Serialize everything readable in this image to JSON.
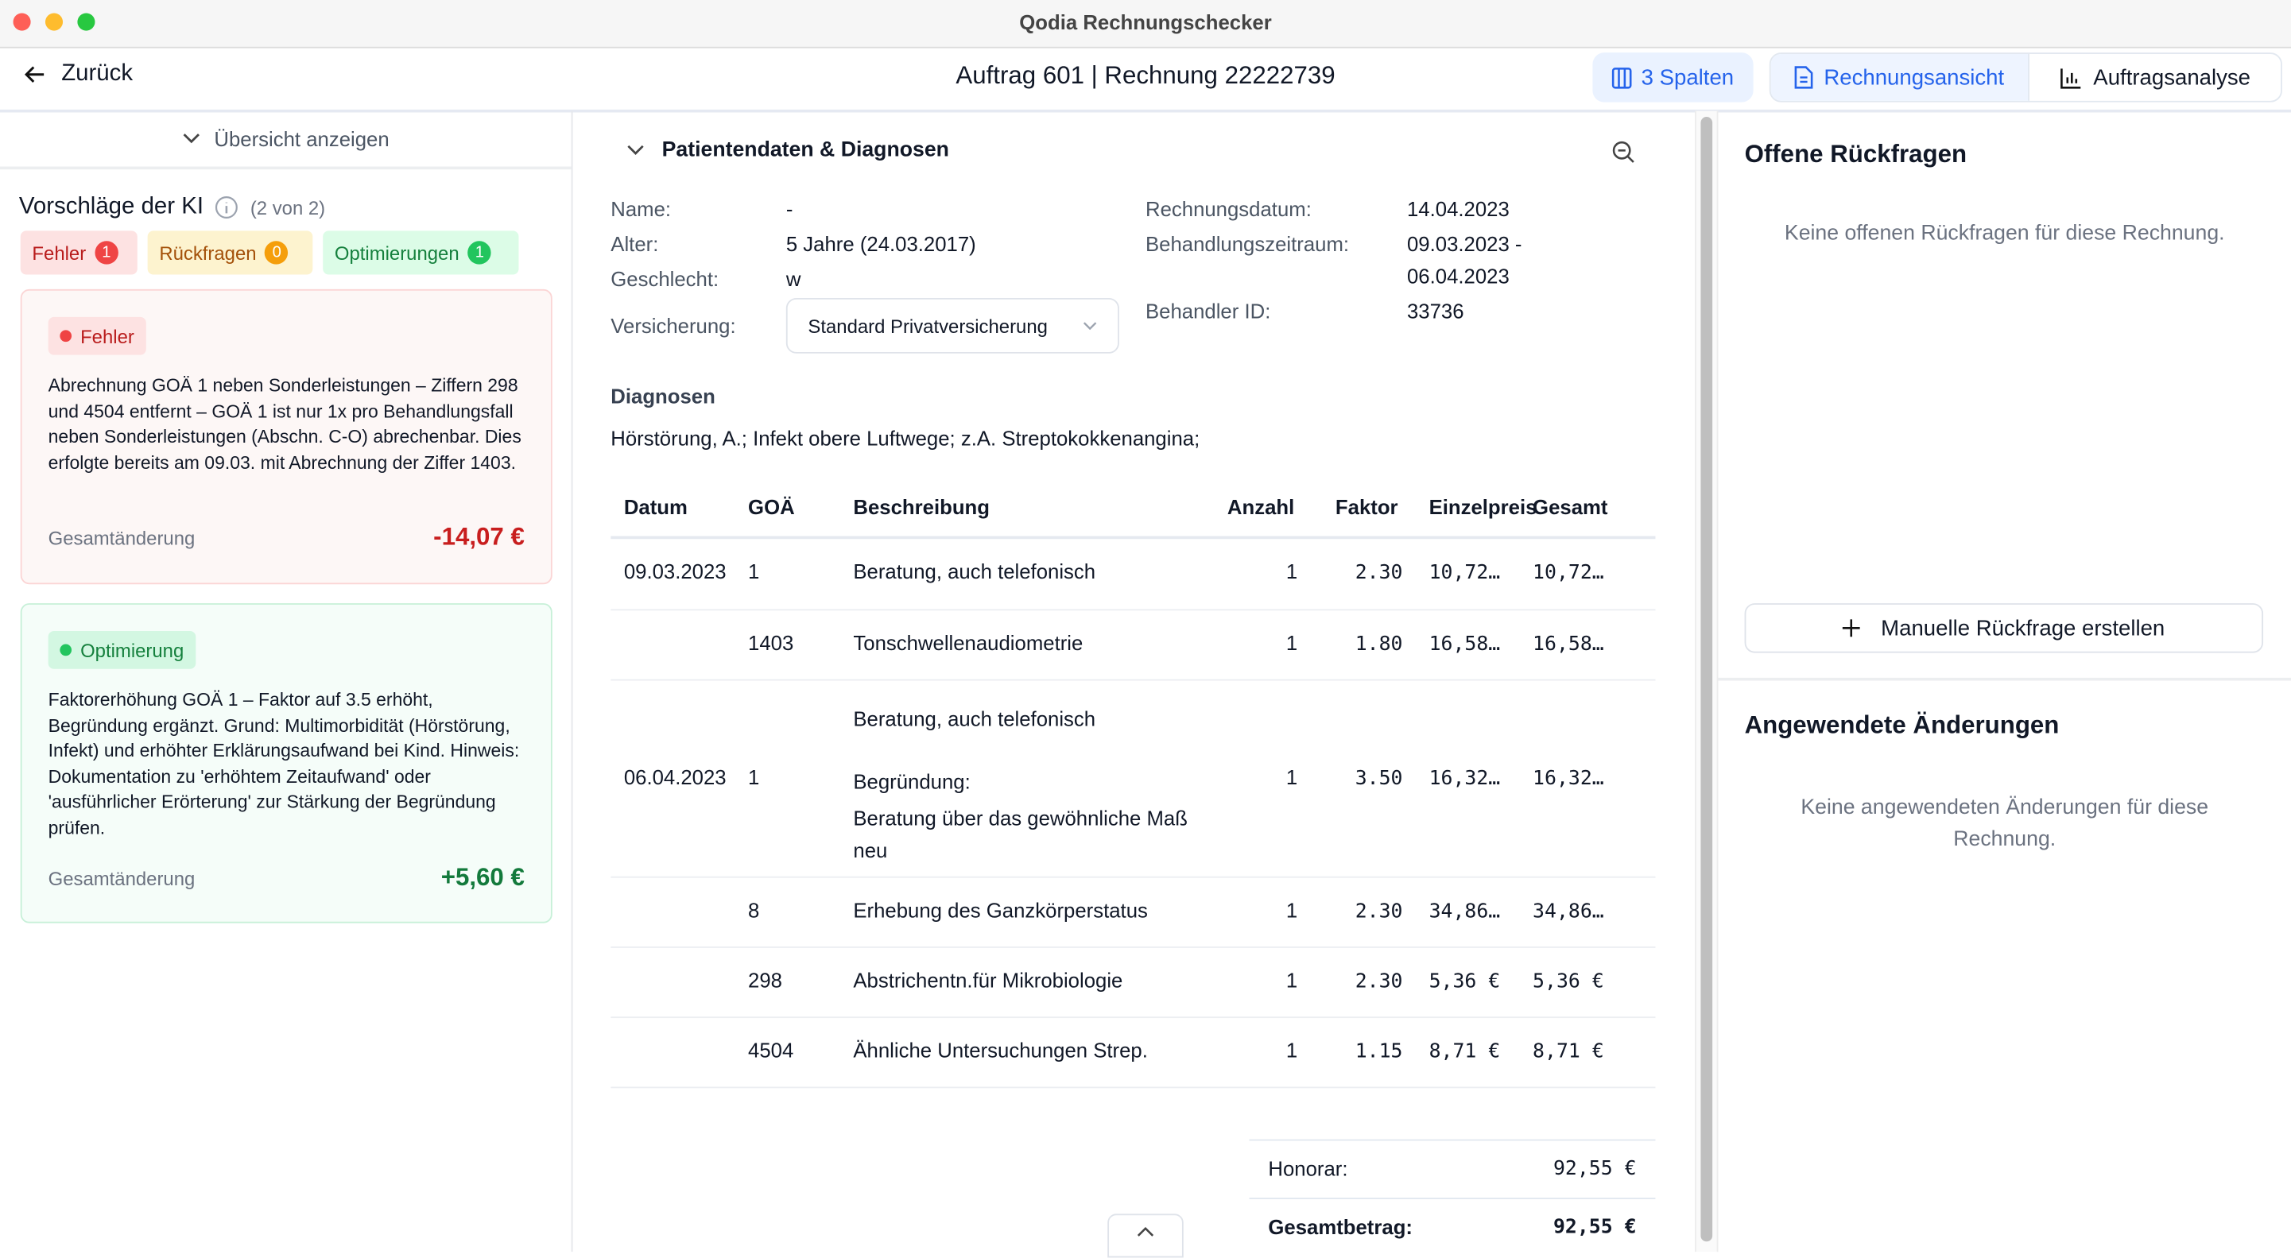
{
  "window": {
    "title": "Qodia Rechnungschecker"
  },
  "header": {
    "back_label": "Zurück",
    "title": "Auftrag 601 | Rechnung 22222739",
    "columns_button": "3 Spalten",
    "view_tabs": [
      {
        "label": "Rechnungsansicht",
        "active": true
      },
      {
        "label": "Auftragsanalyse",
        "active": false
      }
    ]
  },
  "left": {
    "overview_toggle": "Übersicht anzeigen",
    "title": "Vorschläge der KI",
    "count": "(2 von 2)",
    "filters": [
      {
        "label": "Fehler",
        "count": "1",
        "color": "#ef4444"
      },
      {
        "label": "Rückfragen",
        "count": "0",
        "color": "#f59e0b"
      },
      {
        "label": "Optimierungen",
        "count": "1",
        "color": "#22c55e"
      }
    ],
    "cards": [
      {
        "tag": "Fehler",
        "text": "Abrechnung GOÄ 1 neben Sonderleistungen – Ziffern 298 und 4504 entfernt – GOÄ 1 ist nur 1x pro Behandlungsfall neben Sonderleistungen (Abschn. C-O) abrechenbar. Dies erfolgte bereits am 09.03. mit Abrechnung der Ziffer 1403.",
        "change_label": "Gesamtänderung",
        "change_value": "-14,07 €"
      },
      {
        "tag": "Optimierung",
        "text": "Faktorerhöhung GOÄ 1 – Faktor auf 3.5 erhöht, Begründung ergänzt. Grund: Multimorbidität (Hörstörung, Infekt) und erhöhter Erklärungsaufwand bei Kind. Hinweis: Dokumentation zu 'erhöhtem Zeitaufwand' oder 'ausführlicher Erörterung' zur Stärkung der Begründung prüfen.",
        "change_label": "Gesamtänderung",
        "change_value": "+5,60 €"
      }
    ]
  },
  "middle": {
    "section_title": "Patientendaten & Diagnosen",
    "patient": {
      "name_label": "Name:",
      "name": "-",
      "age_label": "Alter:",
      "age": "5 Jahre (24.03.2017)",
      "sex_label": "Geschlecht:",
      "sex": "w",
      "insurance_label": "Versicherung:",
      "insurance": "Standard Privatversicherung",
      "invoice_date_label": "Rechnungsdatum:",
      "invoice_date": "14.04.2023",
      "period_label": "Behandlungszeitraum:",
      "period_start": "09.03.2023 -",
      "period_end": "06.04.2023",
      "provider_label": "Behandler ID:",
      "provider": "33736"
    },
    "diagnoses_title": "Diagnosen",
    "diagnoses": "Hörstörung, A.; Infekt obere Luftwege; z.A. Streptokokkenangina;",
    "table": {
      "headers": [
        "Datum",
        "GOÄ",
        "Beschreibung",
        "Anzahl",
        "Faktor",
        "Einzelpreis",
        "Gesamt"
      ],
      "rows": [
        {
          "date": "09.03.2023",
          "goa": "1",
          "desc": "Beratung, auch telefonisch",
          "qty": "1",
          "factor": "2.30",
          "unit": "10,72…",
          "total": "10,72…"
        },
        {
          "date": "",
          "goa": "1403",
          "desc": "Tonschwellenaudiometrie",
          "qty": "1",
          "factor": "1.80",
          "unit": "16,58…",
          "total": "16,58…"
        },
        {
          "date": "06.04.2023",
          "goa": "1",
          "desc": "Beratung, auch telefonisch",
          "reason_label": "Begründung:",
          "reason": "Beratung über das gewöhnliche Maß neu",
          "qty": "1",
          "factor": "3.50",
          "unit": "16,32…",
          "total": "16,32…"
        },
        {
          "date": "",
          "goa": "8",
          "desc": "Erhebung des Ganzkörperstatus",
          "qty": "1",
          "factor": "2.30",
          "unit": "34,86…",
          "total": "34,86…"
        },
        {
          "date": "",
          "goa": "298",
          "desc": "Abstrichentn.für Mikrobiologie",
          "qty": "1",
          "factor": "2.30",
          "unit": "5,36 €",
          "total": "5,36 €"
        },
        {
          "date": "",
          "goa": "4504",
          "desc": "Ähnliche Untersuchungen Strep.",
          "qty": "1",
          "factor": "1.15",
          "unit": "8,71 €",
          "total": "8,71 €"
        }
      ]
    },
    "totals": {
      "fee_label": "Honorar:",
      "fee": "92,55 €",
      "total_label": "Gesamtbetrag:",
      "total": "92,55 €"
    }
  },
  "right": {
    "open_title": "Offene Rückfragen",
    "open_empty": "Keine offenen Rückfragen für diese Rechnung.",
    "create_button": "Manuelle Rückfrage erstellen",
    "applied_title": "Angewendete Änderungen",
    "applied_empty": "Keine angewendeten Änderungen für diese Rechnung."
  },
  "colors": {
    "accent": "#2563eb",
    "error": "#dc2626",
    "success": "#15803d"
  }
}
